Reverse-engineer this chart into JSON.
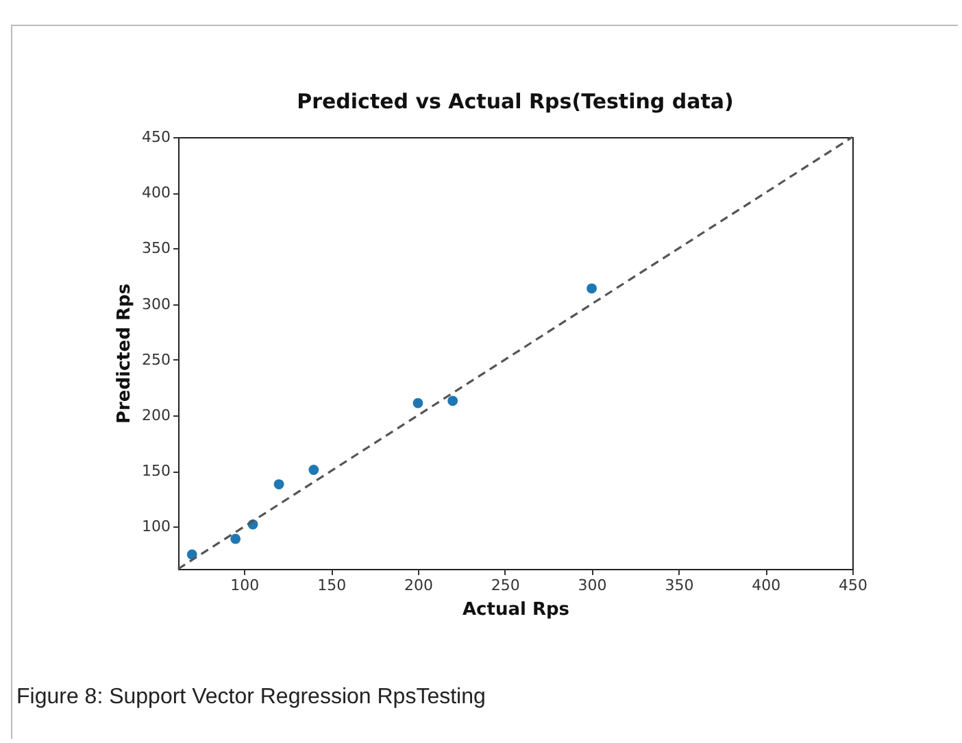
{
  "chart_data": {
    "type": "scatter",
    "title": "Predicted vs Actual Rps(Testing data)",
    "xlabel": "Actual Rps",
    "ylabel": "Predicted Rps",
    "annotations": [
      "Figure 8: Support Vector Regression RpsTesting"
    ],
    "xlim": [
      62,
      450
    ],
    "ylim": [
      62,
      450
    ],
    "xticks": [
      100,
      150,
      200,
      250,
      300,
      350,
      400,
      450
    ],
    "yticks": [
      100,
      150,
      200,
      250,
      300,
      350,
      400,
      450
    ],
    "grid": false,
    "series": [
      {
        "marker": "circle",
        "color": "#1f77b4",
        "x": [
          70,
          95,
          105,
          120,
          140,
          200,
          220,
          300
        ],
        "values": [
          75,
          89,
          102,
          138,
          151,
          211,
          213,
          314
        ]
      },
      {
        "type": "line",
        "color": "#555555",
        "line_style": "dashed",
        "marker": "none",
        "x": [
          62,
          450
        ],
        "values": [
          62,
          450
        ]
      }
    ]
  }
}
